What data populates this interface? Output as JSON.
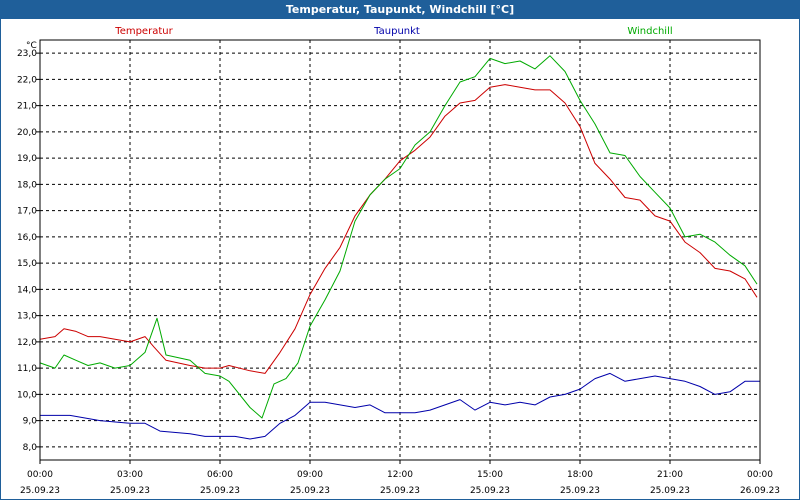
{
  "window": {
    "title": "Temperatur, Taupunkt, Windchill [°C]"
  },
  "chart_data": {
    "type": "line",
    "title": "Temperatur, Taupunkt, Windchill [°C]",
    "unit_label": "°C",
    "ylim": [
      7.5,
      23.5
    ],
    "yticks": [
      "8,0",
      "9,0",
      "10,0",
      "11,0",
      "12,0",
      "13,0",
      "14,0",
      "15,0",
      "16,0",
      "17,0",
      "18,0",
      "19,0",
      "20,0",
      "21,0",
      "22,0",
      "23,0"
    ],
    "xlim": [
      0,
      24
    ],
    "xticks": [
      {
        "time": "00:00",
        "date": "25.09.23"
      },
      {
        "time": "03:00",
        "date": "25.09.23"
      },
      {
        "time": "06:00",
        "date": "25.09.23"
      },
      {
        "time": "09:00",
        "date": "25.09.23"
      },
      {
        "time": "12:00",
        "date": "25.09.23"
      },
      {
        "time": "15:00",
        "date": "25.09.23"
      },
      {
        "time": "18:00",
        "date": "25.09.23"
      },
      {
        "time": "21:00",
        "date": "25.09.23"
      },
      {
        "time": "00:00",
        "date": "26.09.23"
      }
    ],
    "grid": true,
    "legend_position": "top",
    "series": [
      {
        "name": "Temperatur",
        "color": "#cc0000",
        "points": [
          [
            0,
            12.1
          ],
          [
            0.5,
            12.2
          ],
          [
            0.8,
            12.5
          ],
          [
            1.2,
            12.4
          ],
          [
            1.6,
            12.2
          ],
          [
            2,
            12.2
          ],
          [
            2.5,
            12.1
          ],
          [
            3,
            12.0
          ],
          [
            3.5,
            12.2
          ],
          [
            3.8,
            11.8
          ],
          [
            4.2,
            11.3
          ],
          [
            5,
            11.1
          ],
          [
            5.5,
            11.0
          ],
          [
            6,
            11.0
          ],
          [
            6.3,
            11.1
          ],
          [
            7,
            10.9
          ],
          [
            7.5,
            10.8
          ],
          [
            8,
            11.6
          ],
          [
            8.5,
            12.5
          ],
          [
            9,
            13.8
          ],
          [
            9.5,
            14.8
          ],
          [
            10,
            15.6
          ],
          [
            10.5,
            16.8
          ],
          [
            11,
            17.6
          ],
          [
            11.5,
            18.2
          ],
          [
            12,
            18.9
          ],
          [
            12.5,
            19.3
          ],
          [
            13,
            19.8
          ],
          [
            13.5,
            20.6
          ],
          [
            14,
            21.1
          ],
          [
            14.5,
            21.2
          ],
          [
            15,
            21.7
          ],
          [
            15.5,
            21.8
          ],
          [
            16,
            21.7
          ],
          [
            16.5,
            21.6
          ],
          [
            17,
            21.6
          ],
          [
            17.5,
            21.1
          ],
          [
            18,
            20.2
          ],
          [
            18.5,
            18.8
          ],
          [
            19,
            18.2
          ],
          [
            19.5,
            17.5
          ],
          [
            20,
            17.4
          ],
          [
            20.5,
            16.8
          ],
          [
            21,
            16.6
          ],
          [
            21.5,
            15.8
          ],
          [
            22,
            15.4
          ],
          [
            22.5,
            14.8
          ],
          [
            23,
            14.7
          ],
          [
            23.5,
            14.4
          ],
          [
            23.9,
            13.7
          ]
        ]
      },
      {
        "name": "Taupunkt",
        "color": "#0000aa",
        "points": [
          [
            0,
            9.2
          ],
          [
            1,
            9.2
          ],
          [
            2,
            9.0
          ],
          [
            3,
            8.9
          ],
          [
            3.5,
            8.9
          ],
          [
            4,
            8.6
          ],
          [
            5,
            8.5
          ],
          [
            5.5,
            8.4
          ],
          [
            6,
            8.4
          ],
          [
            6.5,
            8.4
          ],
          [
            7,
            8.3
          ],
          [
            7.5,
            8.4
          ],
          [
            8,
            8.9
          ],
          [
            8.5,
            9.2
          ],
          [
            9,
            9.7
          ],
          [
            9.5,
            9.7
          ],
          [
            10,
            9.6
          ],
          [
            10.5,
            9.5
          ],
          [
            11,
            9.6
          ],
          [
            11.5,
            9.3
          ],
          [
            12,
            9.3
          ],
          [
            12.5,
            9.3
          ],
          [
            13,
            9.4
          ],
          [
            13.5,
            9.6
          ],
          [
            14,
            9.8
          ],
          [
            14.5,
            9.4
          ],
          [
            15,
            9.7
          ],
          [
            15.5,
            9.6
          ],
          [
            16,
            9.7
          ],
          [
            16.5,
            9.6
          ],
          [
            17,
            9.9
          ],
          [
            17.5,
            10.0
          ],
          [
            18,
            10.2
          ],
          [
            18.5,
            10.6
          ],
          [
            19,
            10.8
          ],
          [
            19.5,
            10.5
          ],
          [
            20,
            10.6
          ],
          [
            20.5,
            10.7
          ],
          [
            21,
            10.6
          ],
          [
            21.5,
            10.5
          ],
          [
            22,
            10.3
          ],
          [
            22.5,
            10.0
          ],
          [
            23,
            10.1
          ],
          [
            23.5,
            10.5
          ],
          [
            24,
            10.5
          ]
        ]
      },
      {
        "name": "Windchill",
        "color": "#00aa00",
        "points": [
          [
            0,
            11.2
          ],
          [
            0.5,
            11.0
          ],
          [
            0.8,
            11.5
          ],
          [
            1.2,
            11.3
          ],
          [
            1.6,
            11.1
          ],
          [
            2,
            11.2
          ],
          [
            2.5,
            11.0
          ],
          [
            3,
            11.1
          ],
          [
            3.5,
            11.6
          ],
          [
            3.9,
            12.9
          ],
          [
            4.2,
            11.5
          ],
          [
            5,
            11.3
          ],
          [
            5.5,
            10.8
          ],
          [
            6,
            10.7
          ],
          [
            6.3,
            10.5
          ],
          [
            7,
            9.5
          ],
          [
            7.4,
            9.1
          ],
          [
            7.8,
            10.4
          ],
          [
            8.2,
            10.6
          ],
          [
            8.6,
            11.2
          ],
          [
            9,
            12.6
          ],
          [
            9.5,
            13.6
          ],
          [
            10,
            14.7
          ],
          [
            10.5,
            16.6
          ],
          [
            11,
            17.6
          ],
          [
            11.5,
            18.2
          ],
          [
            12,
            18.6
          ],
          [
            12.5,
            19.5
          ],
          [
            13,
            20.0
          ],
          [
            13.5,
            21.0
          ],
          [
            14,
            21.9
          ],
          [
            14.5,
            22.1
          ],
          [
            15,
            22.8
          ],
          [
            15.5,
            22.6
          ],
          [
            16,
            22.7
          ],
          [
            16.5,
            22.4
          ],
          [
            17,
            22.9
          ],
          [
            17.5,
            22.3
          ],
          [
            18,
            21.2
          ],
          [
            18.5,
            20.3
          ],
          [
            19,
            19.2
          ],
          [
            19.5,
            19.1
          ],
          [
            20,
            18.3
          ],
          [
            20.5,
            17.7
          ],
          [
            21,
            17.1
          ],
          [
            21.5,
            16.0
          ],
          [
            22,
            16.1
          ],
          [
            22.5,
            15.8
          ],
          [
            23,
            15.3
          ],
          [
            23.5,
            14.9
          ],
          [
            23.9,
            14.2
          ]
        ]
      }
    ]
  }
}
